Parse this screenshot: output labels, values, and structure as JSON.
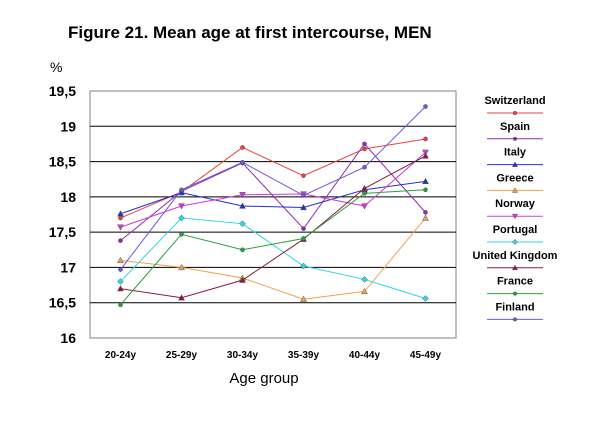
{
  "chart_data": {
    "type": "line",
    "title": "Figure 21. Mean age at first intercourse, MEN",
    "ylabel": "%",
    "xlabel": "Age group",
    "categories": [
      "20-24y",
      "25-29y",
      "30-34y",
      "35-39y",
      "40-44y",
      "45-49y"
    ],
    "ylim": [
      16,
      19.5
    ],
    "yticks": [
      "16",
      "16,5",
      "17",
      "17,5",
      "18",
      "18,5",
      "19",
      "19,5"
    ],
    "grid": true,
    "legend_position": "right",
    "series": [
      {
        "name": "Switzerland",
        "color": "#e8413e",
        "marker": "dot",
        "values": [
          17.7,
          18.07,
          18.7,
          18.3,
          18.68,
          18.82
        ]
      },
      {
        "name": "Spain",
        "color": "#8e2db0",
        "marker": "dot",
        "values": [
          17.38,
          18.08,
          18.48,
          17.55,
          18.75,
          17.78
        ]
      },
      {
        "name": "Italy",
        "color": "#2431c8",
        "marker": "triangle",
        "values": [
          17.76,
          18.06,
          17.87,
          17.85,
          18.1,
          18.22
        ]
      },
      {
        "name": "Greece",
        "color": "#f0a24a",
        "marker": "triangle",
        "values": [
          17.1,
          17.0,
          16.85,
          16.55,
          16.66,
          17.7
        ]
      },
      {
        "name": "Norway",
        "color": "#d33ad6",
        "marker": "triangle-down",
        "values": [
          17.57,
          17.87,
          18.03,
          18.04,
          17.87,
          18.63
        ]
      },
      {
        "name": "Portugal",
        "color": "#30d6e6",
        "marker": "diamond",
        "values": [
          16.8,
          17.7,
          17.62,
          17.02,
          16.83,
          16.56
        ]
      },
      {
        "name": "United Kingdom",
        "color": "#8a1a35",
        "marker": "triangle",
        "values": [
          16.7,
          16.57,
          16.82,
          17.4,
          18.12,
          18.58
        ]
      },
      {
        "name": "France",
        "color": "#27a03b",
        "marker": "dot",
        "values": [
          16.47,
          17.47,
          17.25,
          17.41,
          18.05,
          18.1
        ]
      },
      {
        "name": "Finland",
        "color": "#6b59d8",
        "marker": "dot",
        "values": [
          16.97,
          18.1,
          18.49,
          18.02,
          18.42,
          19.28
        ]
      }
    ]
  }
}
